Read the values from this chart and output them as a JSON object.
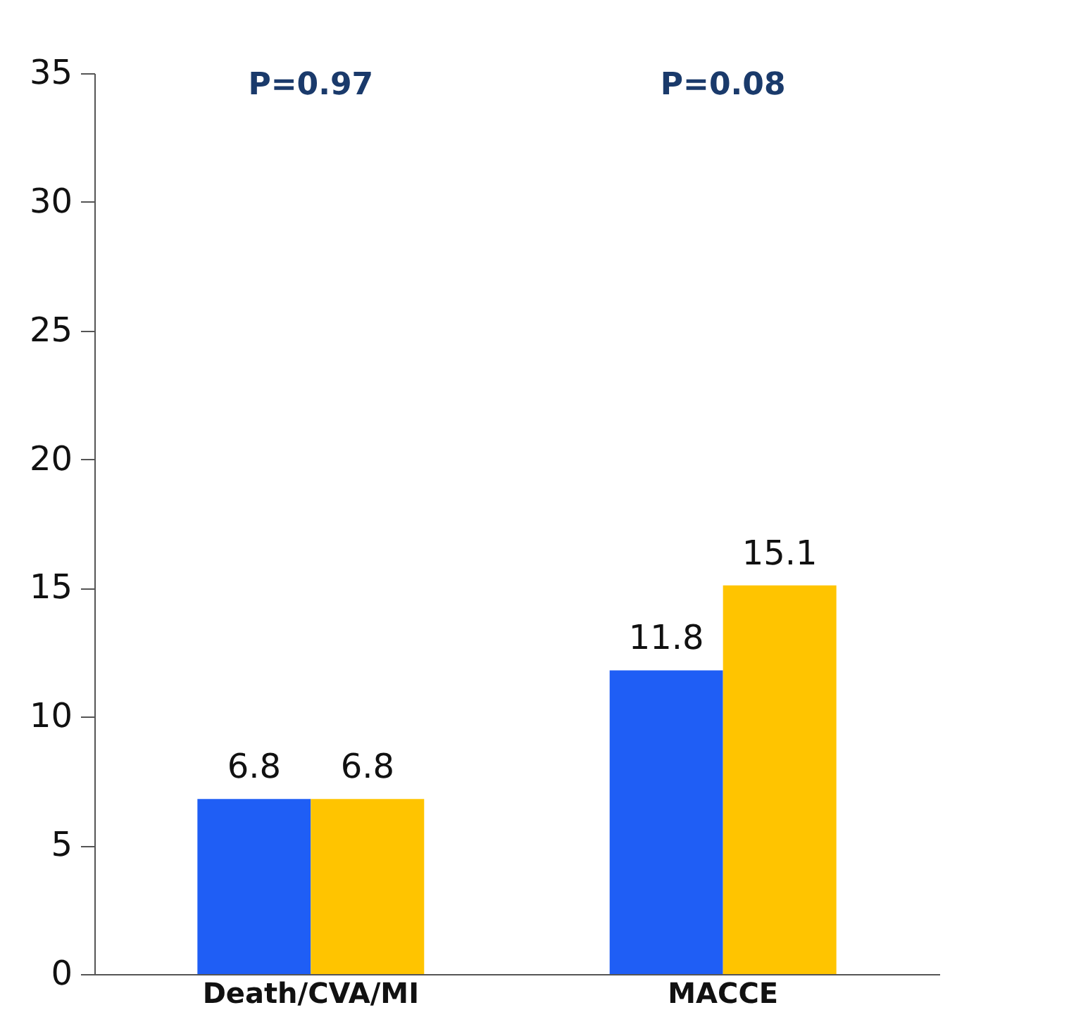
{
  "chart_data": {
    "type": "bar",
    "categories": [
      "Death/CVA/MI",
      "MACCE"
    ],
    "series": [
      {
        "color": "#1f5ef5",
        "values": [
          6.8,
          11.8
        ]
      },
      {
        "color": "#ffc400",
        "values": [
          6.8,
          15.1
        ]
      }
    ],
    "ylim": [
      0,
      35
    ],
    "yticks": [
      0,
      5,
      10,
      15,
      20,
      25,
      30,
      35
    ],
    "data_labels": true,
    "grid": false,
    "legend": false,
    "annotations": [
      "P=0.97",
      "P=0.08"
    ]
  }
}
